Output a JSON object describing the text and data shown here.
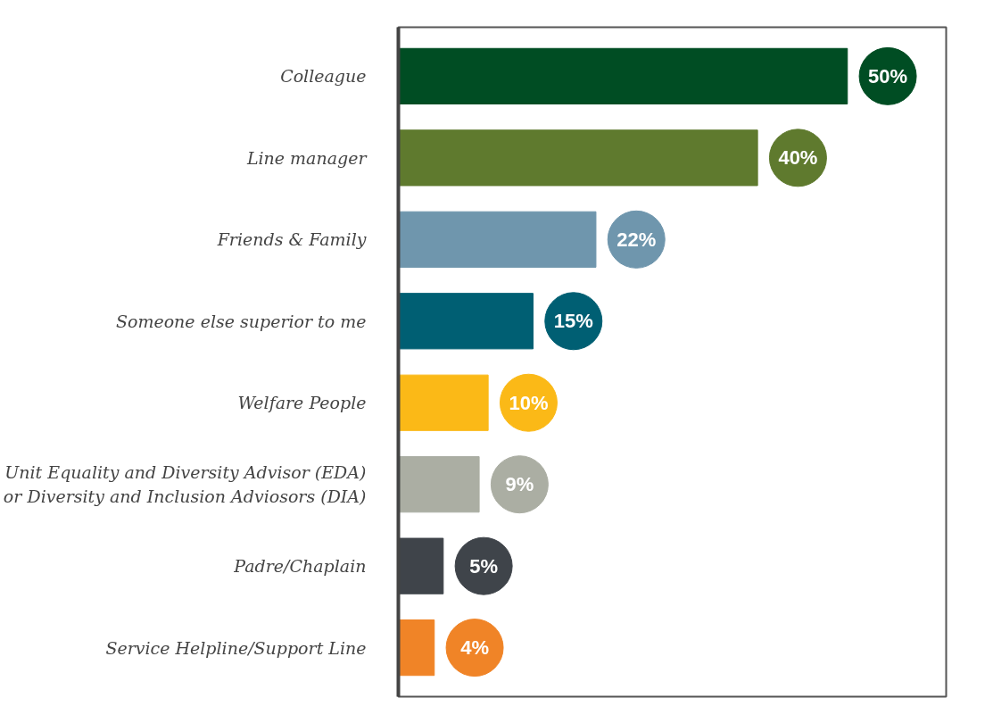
{
  "chart_data": {
    "type": "bar",
    "orientation": "horizontal",
    "categories": [
      "Colleague",
      "Line manager",
      "Friends & Family",
      "Someone else superior to me",
      "Welfare People",
      "Unit Equality and Diversity Advisor (EDA)\nor Diversity and Inclusion Adviosors (DIA)",
      "Padre/Chaplain",
      "Service Helpline/Support Line"
    ],
    "values": [
      50,
      40,
      22,
      15,
      10,
      9,
      5,
      4
    ],
    "colors": [
      "#004d23",
      "#5f7a2e",
      "#6f96ad",
      "#005f73",
      "#fbb917",
      "#abaea3",
      "#3f444a",
      "#f08427"
    ],
    "value_labels": [
      "50%",
      "40%",
      "22%",
      "15%",
      "10%",
      "9%",
      "5%",
      "4%"
    ],
    "tick_labels": "y",
    "grid": false
  }
}
